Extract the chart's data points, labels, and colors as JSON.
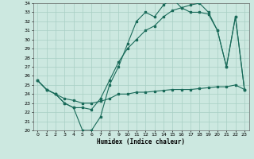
{
  "xlabel": "Humidex (Indice chaleur)",
  "xlim": [
    -0.5,
    23.5
  ],
  "ylim": [
    20,
    34
  ],
  "xticks": [
    0,
    1,
    2,
    3,
    4,
    5,
    6,
    7,
    8,
    9,
    10,
    11,
    12,
    13,
    14,
    15,
    16,
    17,
    18,
    19,
    20,
    21,
    22,
    23
  ],
  "yticks": [
    20,
    21,
    22,
    23,
    24,
    25,
    26,
    27,
    28,
    29,
    30,
    31,
    32,
    33,
    34
  ],
  "bg_color": "#cce8e0",
  "grid_color": "#a8cfc4",
  "line_color": "#1a6b5a",
  "line1_x": [
    0,
    1,
    2,
    3,
    4,
    5,
    6,
    7,
    8,
    9,
    10,
    11,
    12,
    13,
    14,
    15,
    16,
    17,
    18,
    19,
    20,
    21,
    22,
    23
  ],
  "line1_y": [
    25.5,
    24.5,
    24.0,
    23.0,
    22.5,
    20.0,
    20.0,
    21.5,
    25.0,
    27.0,
    29.5,
    32.0,
    33.0,
    32.5,
    33.8,
    34.5,
    33.5,
    33.0,
    33.0,
    32.8,
    31.0,
    27.0,
    32.5,
    24.5
  ],
  "line2_x": [
    0,
    1,
    2,
    3,
    4,
    5,
    6,
    7,
    8,
    9,
    10,
    11,
    12,
    13,
    14,
    15,
    16,
    17,
    18,
    19,
    20,
    21,
    22,
    23
  ],
  "line2_y": [
    25.5,
    24.5,
    24.0,
    23.0,
    22.5,
    22.5,
    22.3,
    23.5,
    25.5,
    27.5,
    29.0,
    30.0,
    31.0,
    31.5,
    32.5,
    33.2,
    33.5,
    33.8,
    34.0,
    33.0,
    31.0,
    27.0,
    32.5,
    24.5
  ],
  "line3_x": [
    0,
    1,
    2,
    3,
    4,
    5,
    6,
    7,
    8,
    9,
    10,
    11,
    12,
    13,
    14,
    15,
    16,
    17,
    18,
    19,
    20,
    21,
    22,
    23
  ],
  "line3_y": [
    25.5,
    24.5,
    24.0,
    23.5,
    23.3,
    23.0,
    23.0,
    23.2,
    23.5,
    24.0,
    24.0,
    24.2,
    24.2,
    24.3,
    24.4,
    24.5,
    24.5,
    24.5,
    24.6,
    24.7,
    24.8,
    24.8,
    25.0,
    24.5
  ],
  "font_color": "#000000"
}
